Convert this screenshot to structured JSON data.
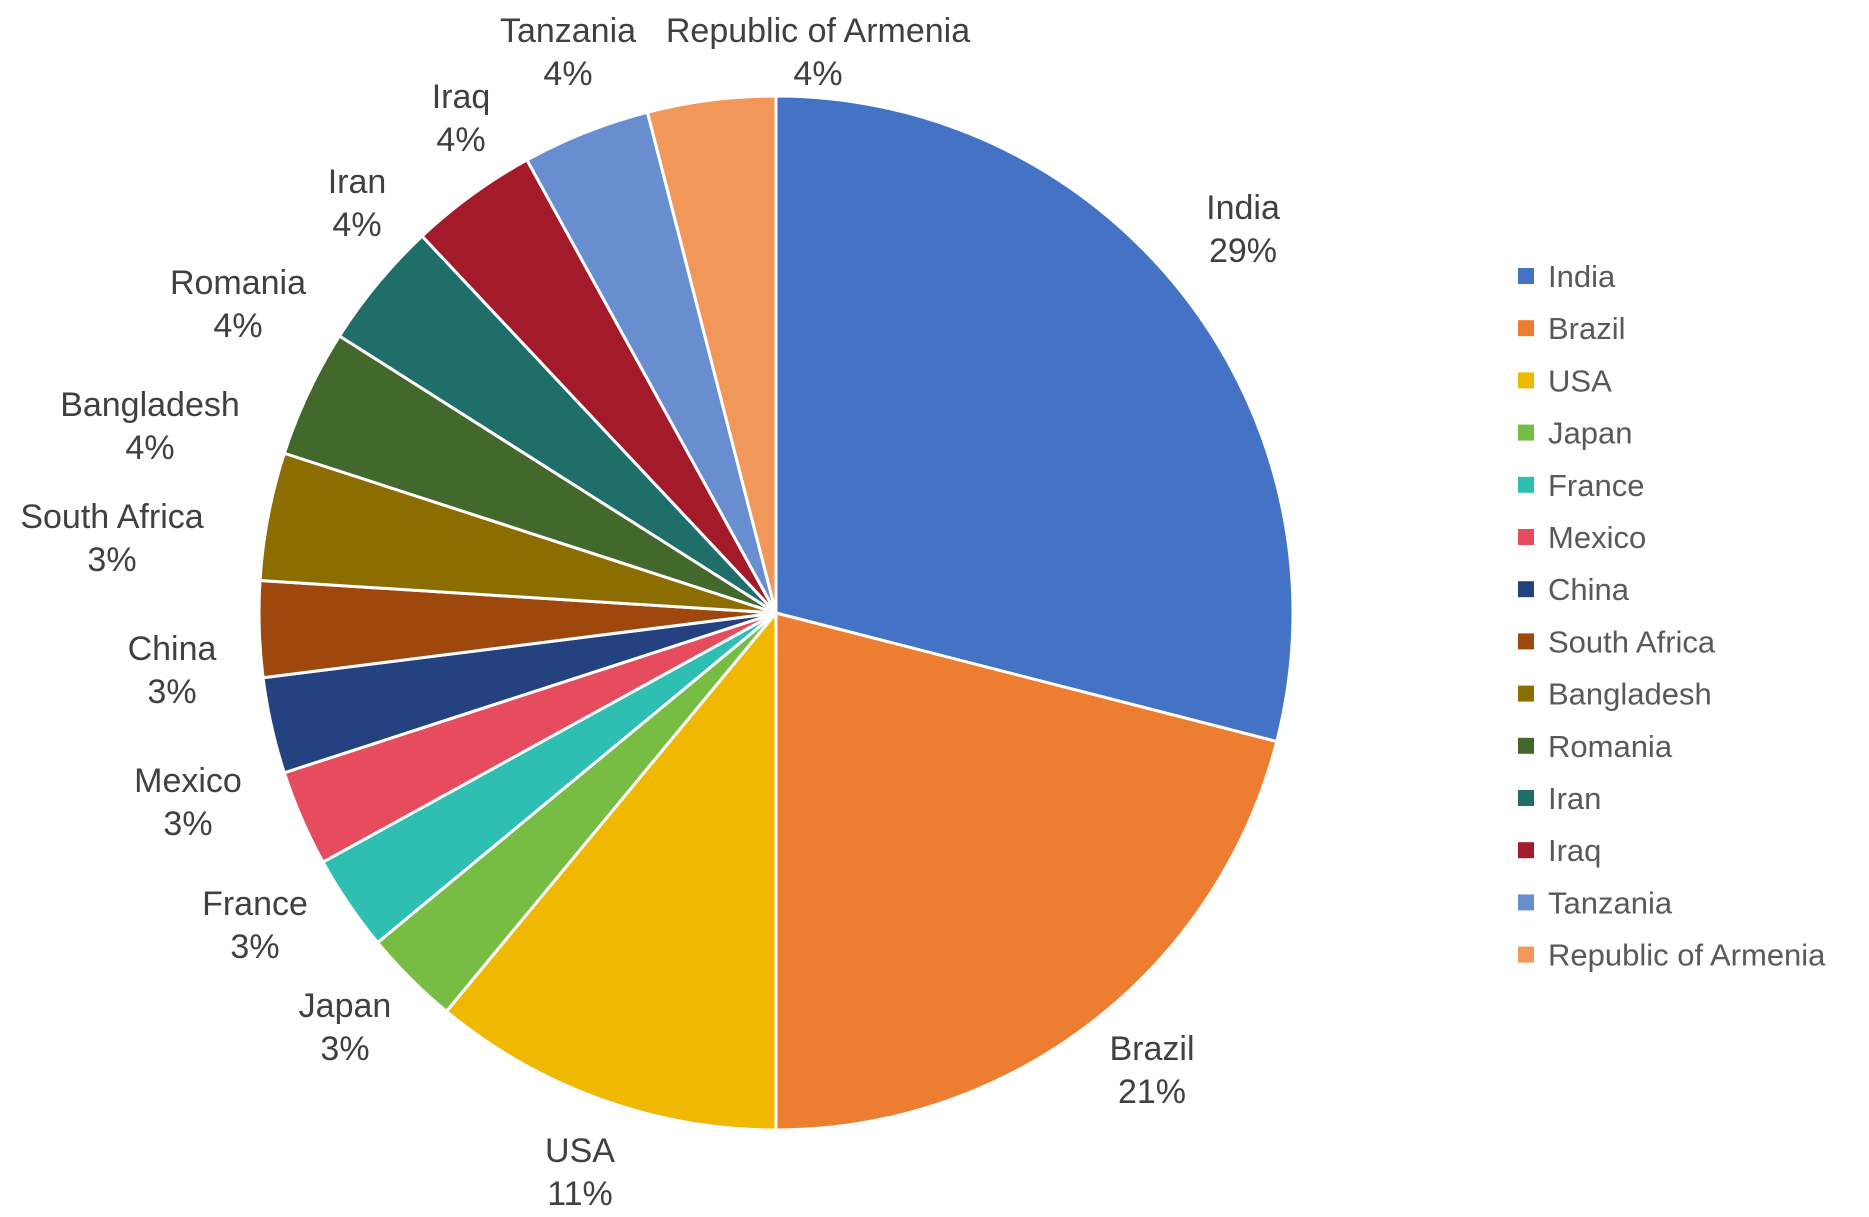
{
  "chart_data": {
    "type": "pie",
    "title": "",
    "slices": [
      {
        "name": "India",
        "value": 29,
        "label": "29%",
        "color": "#4472C4"
      },
      {
        "name": "Brazil",
        "value": 21,
        "label": "21%",
        "color": "#ED7D31"
      },
      {
        "name": "USA",
        "value": 11,
        "label": "11%",
        "color": "#F0B800"
      },
      {
        "name": "Japan",
        "value": 3,
        "label": "3%",
        "color": "#77BC43"
      },
      {
        "name": "France",
        "value": 3,
        "label": "3%",
        "color": "#2EBFB2"
      },
      {
        "name": "Mexico",
        "value": 3,
        "label": "3%",
        "color": "#E64C5D"
      },
      {
        "name": "China",
        "value": 3,
        "label": "3%",
        "color": "#254280"
      },
      {
        "name": "South Africa",
        "value": 3,
        "label": "3%",
        "color": "#9E480E"
      },
      {
        "name": "Bangladesh",
        "value": 4,
        "label": "4%",
        "color": "#8B6D00"
      },
      {
        "name": "Romania",
        "value": 4,
        "label": "4%",
        "color": "#43682B"
      },
      {
        "name": "Iran",
        "value": 4,
        "label": "4%",
        "color": "#1F6E6A"
      },
      {
        "name": "Iraq",
        "value": 4,
        "label": "4%",
        "color": "#A31A2B"
      },
      {
        "name": "Tanzania",
        "value": 4,
        "label": "4%",
        "color": "#698ED0"
      },
      {
        "name": "Republic of Armenia",
        "value": 4,
        "label": "4%",
        "color": "#F1975A"
      }
    ],
    "legend": {
      "position": "right",
      "items": [
        "India",
        "Brazil",
        "USA",
        "Japan",
        "France",
        "Mexico",
        "China",
        "South Africa",
        "Bangladesh",
        "Romania",
        "Iran",
        "Iraq",
        "Tanzania",
        "Republic of Armenia"
      ]
    }
  }
}
